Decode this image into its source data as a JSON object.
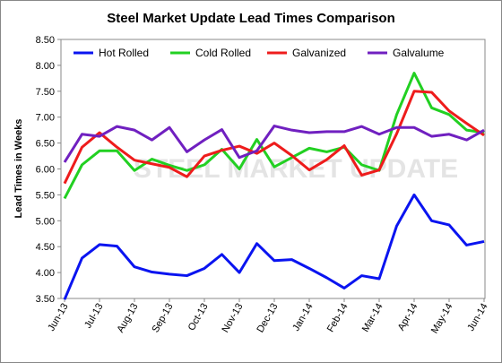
{
  "chart_data": {
    "type": "line",
    "title": "Steel Market Update Lead Times Comparison",
    "y_label": "Lead Times in Weeks",
    "watermark": "STEEL MARKET UPDATE",
    "categories": [
      "Jun-13",
      null,
      "Jul-13",
      null,
      "Aug-13",
      null,
      "Sep-13",
      null,
      "Oct-13",
      null,
      "Nov-13",
      null,
      "Dec-13",
      null,
      "Jan-14",
      null,
      "Feb-14",
      null,
      "Mar-14",
      null,
      "Apr-14",
      null,
      "May-14",
      null,
      "Jun-14"
    ],
    "series": [
      {
        "name": "Hot Rolled",
        "color": "#0a14f0",
        "values": [
          3.48,
          4.28,
          4.54,
          4.51,
          4.11,
          4.01,
          3.97,
          3.94,
          4.08,
          4.35,
          4.0,
          4.56,
          4.23,
          4.25,
          4.08,
          3.9,
          3.7,
          3.94,
          3.88,
          4.9,
          5.5,
          5.0,
          4.92,
          4.53,
          4.6
        ]
      },
      {
        "name": "Cold Rolled",
        "color": "#22d022",
        "values": [
          5.43,
          6.08,
          6.35,
          6.35,
          5.97,
          6.19,
          6.07,
          5.97,
          6.08,
          6.38,
          6.0,
          6.57,
          6.04,
          6.22,
          6.4,
          6.33,
          6.42,
          6.08,
          5.97,
          7.05,
          7.85,
          7.18,
          7.05,
          6.75,
          6.7
        ]
      },
      {
        "name": "Galvanized",
        "color": "#ee1c1c",
        "values": [
          5.72,
          6.42,
          6.7,
          6.42,
          6.17,
          6.1,
          6.03,
          5.85,
          6.25,
          6.36,
          6.44,
          6.3,
          6.5,
          6.26,
          5.98,
          6.18,
          6.45,
          5.88,
          5.98,
          6.68,
          7.5,
          7.48,
          7.12,
          6.88,
          6.65
        ]
      },
      {
        "name": "Galvalume",
        "color": "#7020c0",
        "values": [
          6.13,
          6.67,
          6.63,
          6.82,
          6.75,
          6.56,
          6.8,
          6.33,
          6.56,
          6.76,
          6.22,
          6.35,
          6.83,
          6.75,
          6.7,
          6.72,
          6.72,
          6.82,
          6.67,
          6.8,
          6.8,
          6.63,
          6.67,
          6.56,
          6.75
        ]
      }
    ],
    "ylim": [
      3.5,
      8.5
    ],
    "yticks": [
      {
        "value": 3.5,
        "label": "3.50"
      },
      {
        "value": 4,
        "label": "4.00"
      },
      {
        "value": 4.5,
        "label": "4.50"
      },
      {
        "value": 5,
        "label": "5.00"
      },
      {
        "value": 5.5,
        "label": "5.50"
      },
      {
        "value": 6,
        "label": "6.00"
      },
      {
        "value": 6.5,
        "label": "6.50"
      },
      {
        "value": 7,
        "label": "7.00"
      },
      {
        "value": 7.5,
        "label": "7.50"
      },
      {
        "value": 8,
        "label": "8.00"
      },
      {
        "value": 8.5,
        "label": "8.50"
      }
    ],
    "grid": false,
    "legend": "top"
  }
}
